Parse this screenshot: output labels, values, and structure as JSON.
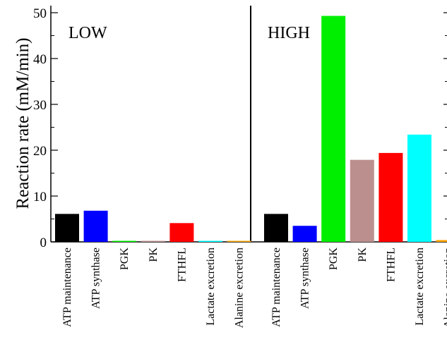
{
  "chart_data": {
    "type": "bar",
    "ylabel": "Reaction rate (mM/min)",
    "ylim": [
      0,
      50
    ],
    "yticks": [
      0,
      10,
      20,
      30,
      40,
      50
    ],
    "grid": false,
    "categories": [
      "ATP maintenance",
      "ATP synthase",
      "PGK",
      "PK",
      "FTHFL",
      "Lactate excretion",
      "Alanine excretion"
    ],
    "colors": [
      "#000000",
      "#0000ff",
      "#00ee00",
      "#bc8f8f",
      "#ff0000",
      "#00ffff",
      "#ffa500"
    ],
    "panels": [
      {
        "title": "LOW",
        "values": [
          6.1,
          6.8,
          0.2,
          0.2,
          4.1,
          0.2,
          0.2
        ]
      },
      {
        "title": "HIGH",
        "values": [
          6.1,
          3.5,
          49.3,
          17.9,
          19.4,
          23.4,
          0.4
        ]
      }
    ]
  }
}
